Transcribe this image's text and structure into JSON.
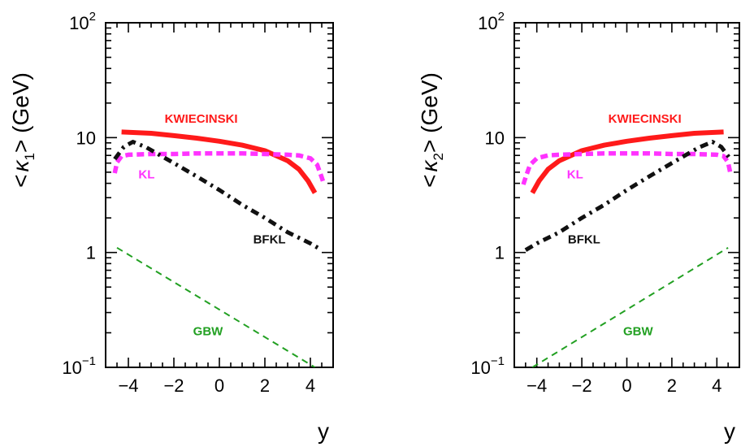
{
  "chart_data": [
    {
      "type": "line",
      "panel": "left",
      "xlabel": "y",
      "ylabel": {
        "pre": "<",
        "kappa": "κ",
        "sub": "1",
        "post": ">  (GeV)"
      },
      "y_scale": "log",
      "xlim": [
        -5,
        5
      ],
      "ylim": [
        0.1,
        100
      ],
      "x_ticks": [
        -4,
        -2,
        0,
        2,
        4
      ],
      "x_tick_labels": [
        "−4",
        "−2",
        "0",
        "2",
        "4"
      ],
      "y_ticks": [
        {
          "value": 100,
          "base": "10",
          "sup": "2"
        },
        {
          "value": 10,
          "base": "10",
          "sup": ""
        },
        {
          "value": 1,
          "base": "1",
          "sup": ""
        },
        {
          "value": 0.1,
          "base": "10",
          "sup": "−1"
        }
      ],
      "series": [
        {
          "name": "KWIECINSKI",
          "color": "#ff1a1a",
          "style": "solid",
          "x": [
            -4.3,
            -3,
            -2,
            -1,
            0,
            1,
            2,
            3,
            3.5,
            3.9,
            4.2
          ],
          "y": [
            11.2,
            10.9,
            10.4,
            9.9,
            9.3,
            8.6,
            7.7,
            6.3,
            5.3,
            4.2,
            3.3
          ],
          "label_at": [
            -0.8,
            13.5
          ]
        },
        {
          "name": "KL",
          "color": "#ff33ff",
          "style": "dashed",
          "x": [
            -4.6,
            -4.5,
            -4.3,
            -4,
            -3,
            -2,
            -1,
            0,
            1,
            2,
            3,
            3.5,
            4,
            4.3,
            4.5,
            4.6
          ],
          "y": [
            4.9,
            6.1,
            6.9,
            7.1,
            7.2,
            7.2,
            7.3,
            7.3,
            7.3,
            7.2,
            7.1,
            7.0,
            6.6,
            5.8,
            4.5,
            3.9
          ],
          "label_at": [
            -3.2,
            4.4
          ]
        },
        {
          "name": "BFKL",
          "color": "#111111",
          "style": "dashdot",
          "x": [
            -4.6,
            -4.2,
            -3.8,
            -3.2,
            -2,
            -1,
            0,
            1,
            2,
            3,
            4,
            4.5
          ],
          "y": [
            6.5,
            8.3,
            9.2,
            8.2,
            6.0,
            4.6,
            3.5,
            2.6,
            2.0,
            1.5,
            1.2,
            1.05
          ],
          "label_at": [
            2.2,
            1.2
          ]
        },
        {
          "name": "GBW",
          "color": "#22a022",
          "style": "dashed-thin",
          "x": [
            -4.5,
            4.2
          ],
          "y": [
            1.1,
            0.1
          ],
          "label_at": [
            -0.5,
            0.19
          ]
        }
      ]
    },
    {
      "type": "line",
      "panel": "right",
      "xlabel": "y",
      "ylabel": {
        "pre": "<",
        "kappa": "κ",
        "sub": "2",
        "post": ">  (GeV)"
      },
      "y_scale": "log",
      "xlim": [
        -5,
        5
      ],
      "ylim": [
        0.1,
        100
      ],
      "x_ticks": [
        -4,
        -2,
        0,
        2,
        4
      ],
      "x_tick_labels": [
        "−4",
        "−2",
        "0",
        "2",
        "4"
      ],
      "y_ticks": [
        {
          "value": 100,
          "base": "10",
          "sup": "2"
        },
        {
          "value": 10,
          "base": "10",
          "sup": ""
        },
        {
          "value": 1,
          "base": "1",
          "sup": ""
        },
        {
          "value": 0.1,
          "base": "10",
          "sup": "−1"
        }
      ],
      "series": [
        {
          "name": "KWIECINSKI",
          "color": "#ff1a1a",
          "style": "solid",
          "x": [
            -4.2,
            -3.9,
            -3.5,
            -3,
            -2,
            -1,
            0,
            1,
            2,
            3,
            4.3
          ],
          "y": [
            3.3,
            4.2,
            5.3,
            6.3,
            7.7,
            8.6,
            9.3,
            9.9,
            10.4,
            10.9,
            11.2
          ],
          "label_at": [
            0.8,
            13.5
          ]
        },
        {
          "name": "KL",
          "color": "#ff33ff",
          "style": "dashed",
          "x": [
            -4.6,
            -4.5,
            -4.3,
            -4,
            -3.5,
            -3,
            -2,
            -1,
            0,
            1,
            2,
            3,
            4,
            4.3,
            4.5,
            4.6
          ],
          "y": [
            3.9,
            4.5,
            5.8,
            6.6,
            7.0,
            7.1,
            7.2,
            7.3,
            7.3,
            7.3,
            7.2,
            7.2,
            7.1,
            6.9,
            6.1,
            4.9
          ],
          "label_at": [
            -2.3,
            4.4
          ]
        },
        {
          "name": "BFKL",
          "color": "#111111",
          "style": "dashdot",
          "x": [
            -4.5,
            -4,
            -3,
            -2,
            -1,
            0,
            1,
            2,
            3.2,
            3.8,
            4.2,
            4.6
          ],
          "y": [
            1.05,
            1.2,
            1.5,
            2.0,
            2.6,
            3.5,
            4.6,
            6.0,
            8.2,
            9.2,
            8.3,
            6.5
          ],
          "label_at": [
            -1.9,
            1.2
          ]
        },
        {
          "name": "GBW",
          "color": "#22a022",
          "style": "dashed-thin",
          "x": [
            -4.2,
            4.5
          ],
          "y": [
            0.1,
            1.1
          ],
          "label_at": [
            0.5,
            0.19
          ]
        }
      ]
    }
  ]
}
